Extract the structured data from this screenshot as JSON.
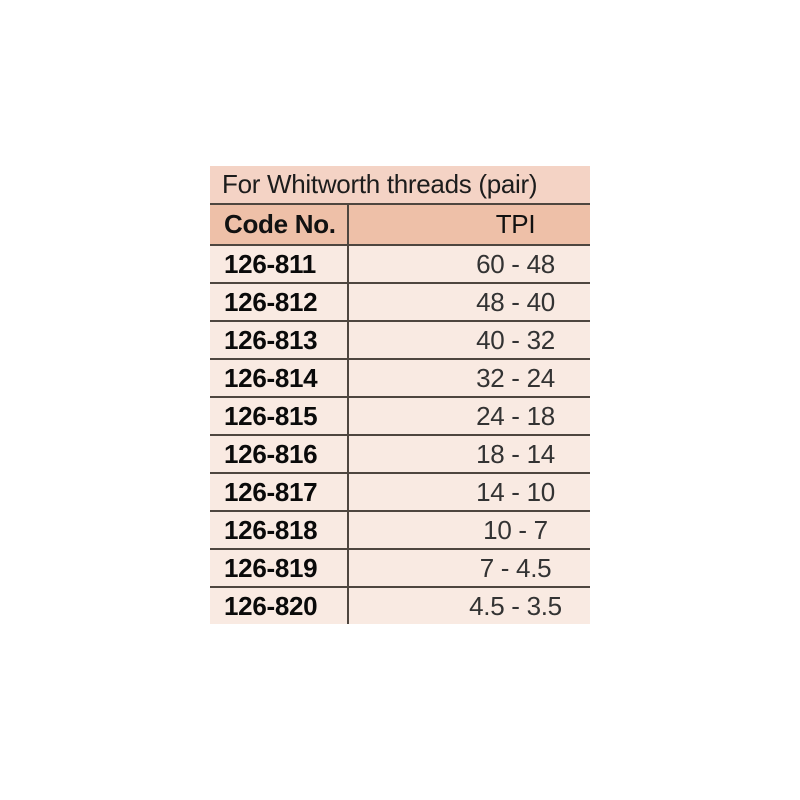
{
  "table": {
    "title": "For Whitworth threads (pair)",
    "columns": [
      {
        "key": "code",
        "label": "Code No."
      },
      {
        "key": "tpi",
        "label": "TPI"
      }
    ],
    "rows": [
      {
        "code": "126-811",
        "tpi": "60 - 48"
      },
      {
        "code": "126-812",
        "tpi": "48 - 40"
      },
      {
        "code": "126-813",
        "tpi": "40 - 32"
      },
      {
        "code": "126-814",
        "tpi": "32 - 24"
      },
      {
        "code": "126-815",
        "tpi": "24 - 18"
      },
      {
        "code": "126-816",
        "tpi": "18 - 14"
      },
      {
        "code": "126-817",
        "tpi": "14 - 10"
      },
      {
        "code": "126-818",
        "tpi": "10 - 7"
      },
      {
        "code": "126-819",
        "tpi": "7 - 4.5"
      },
      {
        "code": "126-820",
        "tpi": "4.5 - 3.5"
      }
    ],
    "colors": {
      "title_bg": "#f4d3c5",
      "header_bg": "#eec0a8",
      "row_bg": "#f9eae2",
      "border": "#4e463f",
      "title_text": "#1c1c1c",
      "header_text": "#111111",
      "code_text": "#0a0a0a",
      "value_text": "#333333"
    }
  },
  "chart_data": {
    "type": "table",
    "title": "For Whitworth threads (pair)",
    "columns": [
      "Code No.",
      "TPI"
    ],
    "rows": [
      [
        "126-811",
        "60 - 48"
      ],
      [
        "126-812",
        "48 - 40"
      ],
      [
        "126-813",
        "40 - 32"
      ],
      [
        "126-814",
        "32 - 24"
      ],
      [
        "126-815",
        "24 - 18"
      ],
      [
        "126-816",
        "18 - 14"
      ],
      [
        "126-817",
        "14 - 10"
      ],
      [
        "126-818",
        "10 - 7"
      ],
      [
        "126-819",
        "7 - 4.5"
      ],
      [
        "126-820",
        "4.5 - 3.5"
      ]
    ]
  }
}
